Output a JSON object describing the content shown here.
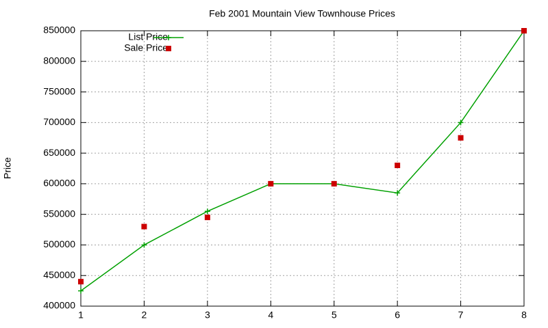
{
  "chart_data": {
    "type": "line",
    "title": "Feb 2001 Mountain View Townhouse Prices",
    "y_label": "Price",
    "x": [
      1,
      2,
      3,
      4,
      5,
      6,
      7,
      8
    ],
    "series": [
      {
        "name": "List Price",
        "color": "#00a000",
        "style": "linespoints",
        "marker": "plus",
        "values": [
          425000,
          500000,
          555000,
          600000,
          600000,
          585000,
          700000,
          850000
        ]
      },
      {
        "name": "Sale Price",
        "color": "#cc0000",
        "style": "points",
        "marker": "square",
        "values": [
          440000,
          530000,
          545000,
          600000,
          600000,
          630000,
          675000,
          850000
        ]
      }
    ],
    "xlim": [
      1,
      8
    ],
    "xticks": [
      1,
      2,
      3,
      4,
      5,
      6,
      7,
      8
    ],
    "ylim": [
      400000,
      850000
    ],
    "yticks": [
      400000,
      450000,
      500000,
      550000,
      600000,
      650000,
      700000,
      750000,
      800000,
      850000
    ],
    "grid": true,
    "legend": "top-left"
  }
}
